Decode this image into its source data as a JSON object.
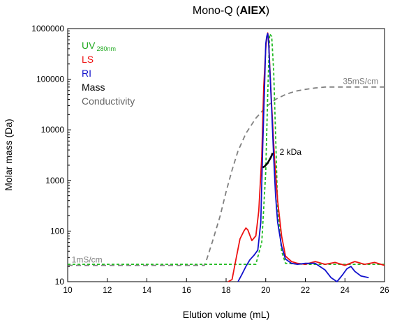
{
  "chart_data": {
    "type": "line",
    "title_prefix": "Mono-Q (",
    "title_bold": "AIEX",
    "title_suffix": ")",
    "xlabel": "Elution volume (mL)",
    "ylabel": "Molar mass (Da)",
    "xlim": [
      10,
      26
    ],
    "ylim": [
      10,
      1000000
    ],
    "yscale": "log",
    "x_ticks": [
      10,
      12,
      14,
      16,
      18,
      20,
      22,
      24,
      26
    ],
    "x_tick_labels": [
      "10",
      "12",
      "14",
      "16",
      "18",
      "20",
      "22",
      "24",
      "26"
    ],
    "y_ticks": [
      10,
      100,
      1000,
      10000,
      100000,
      1000000
    ],
    "y_tick_labels": [
      "10",
      "100",
      "1000",
      "10000",
      "100000",
      "1000000"
    ],
    "grid": false,
    "legend_position": "top-left",
    "legend": [
      {
        "label": "UV",
        "sub": "280nm",
        "color": "#22aa22"
      },
      {
        "label": "LS",
        "sub": "",
        "color": "#ee1111"
      },
      {
        "label": "RI",
        "sub": "",
        "color": "#1111cc"
      },
      {
        "label": "Mass",
        "sub": "",
        "color": "#000000"
      },
      {
        "label": "Conductivity",
        "sub": "",
        "color": "#666666"
      }
    ],
    "annotations": [
      {
        "text": "35mS/cm",
        "x": 23.9,
        "y": 80000,
        "color": "#808080"
      },
      {
        "text": "1mS/cm",
        "x": 10.2,
        "y": 24,
        "color": "#808080"
      },
      {
        "text": "2 kDa",
        "x": 20.7,
        "y": 3200,
        "color": "#000000"
      }
    ],
    "series": [
      {
        "name": "Conductivity",
        "color": "#808080",
        "dash": "7,5",
        "x": [
          10,
          12,
          14,
          16,
          16.9,
          17.0,
          17.3,
          17.7,
          18.0,
          18.3,
          18.6,
          19.0,
          19.5,
          20.0,
          20.5,
          21.0,
          21.5,
          22.0,
          22.5,
          23.0,
          24,
          25,
          26
        ],
        "y": [
          21,
          21,
          21,
          21,
          21,
          26,
          60,
          200,
          600,
          1600,
          3800,
          8500,
          17000,
          28000,
          40000,
          50000,
          58000,
          63000,
          67000,
          70000,
          70000,
          70000,
          70000
        ]
      },
      {
        "name": "UV 280nm",
        "color": "#22bb22",
        "dash": "4,3",
        "x": [
          10,
          14,
          18,
          19.5,
          19.8,
          20.0,
          20.1,
          20.2,
          20.3,
          20.4,
          20.5,
          20.6,
          20.8,
          21.0,
          22,
          24,
          26
        ],
        "y": [
          22,
          22,
          22,
          22,
          60,
          1500,
          50000,
          780000,
          700000,
          150000,
          8000,
          300,
          40,
          23,
          22,
          22,
          22
        ]
      },
      {
        "name": "LS",
        "color": "#ee1111",
        "dash": "",
        "x": [
          18.1,
          18.3,
          18.5,
          18.7,
          18.9,
          19.0,
          19.1,
          19.3,
          19.5,
          19.65,
          19.8,
          19.9,
          20.0,
          20.05,
          20.1,
          20.15,
          20.2,
          20.3,
          20.45,
          20.6,
          20.8,
          21.0,
          21.3,
          21.6,
          22.0,
          22.5,
          23.0,
          23.5,
          24.0,
          24.5,
          25.0,
          25.5,
          26.0
        ],
        "y": [
          10,
          11,
          28,
          70,
          100,
          115,
          105,
          65,
          80,
          250,
          3000,
          70000,
          400000,
          650000,
          820000,
          600000,
          200000,
          30000,
          2500,
          400,
          80,
          32,
          25,
          23,
          22,
          25,
          22,
          24,
          21,
          25,
          22,
          24,
          21
        ]
      },
      {
        "name": "RI",
        "color": "#1111cc",
        "dash": "",
        "x": [
          18.6,
          18.8,
          19.0,
          19.2,
          19.4,
          19.6,
          19.75,
          19.85,
          19.95,
          20.0,
          20.05,
          20.1,
          20.15,
          20.2,
          20.3,
          20.4,
          20.5,
          20.6,
          20.8,
          21.0,
          21.3,
          21.6,
          22.0,
          22.5,
          23.0,
          23.3,
          23.6,
          23.9,
          24.1,
          24.3,
          24.5,
          24.8,
          25.2
        ],
        "y": [
          10,
          14,
          20,
          27,
          33,
          42,
          150,
          5000,
          90000,
          500000,
          700000,
          800000,
          500000,
          180000,
          25000,
          3000,
          500,
          150,
          50,
          28,
          23,
          22,
          23,
          23,
          17,
          12,
          10,
          14,
          18,
          20,
          16,
          13,
          12
        ]
      },
      {
        "name": "Mass",
        "color": "#000000",
        "dash": "",
        "x": [
          19.85,
          19.9,
          19.95,
          20.0,
          20.05,
          20.1,
          20.15,
          20.2,
          20.25,
          20.3,
          20.35
        ],
        "y": [
          1800,
          1850,
          1900,
          2000,
          2100,
          2200,
          2400,
          2600,
          2800,
          3100,
          3500
        ]
      }
    ]
  }
}
